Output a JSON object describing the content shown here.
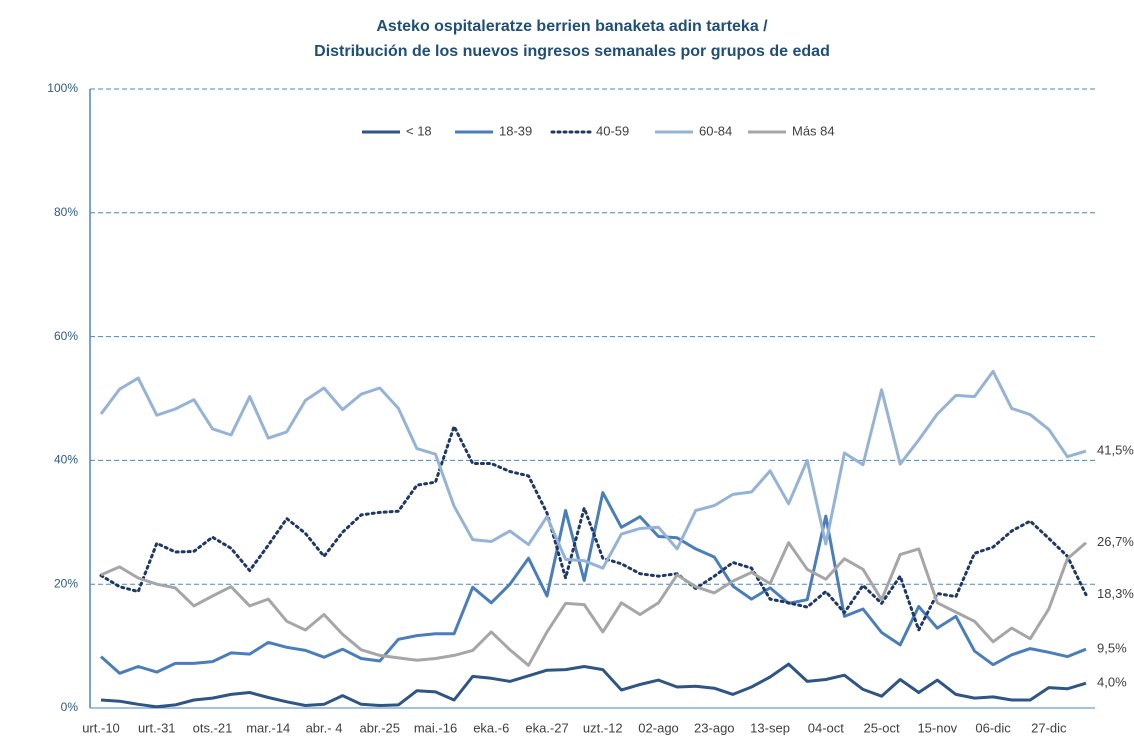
{
  "chart_data": {
    "type": "line",
    "title": [
      "Asteko ospitaleratze berrien banaketa adin tarteka /",
      "Distribución de los nuevos ingresos semanales por grupos de edad"
    ],
    "categories": [
      "urt.-10",
      null,
      null,
      "urt.-31",
      null,
      null,
      "ots.-21",
      null,
      null,
      "mar.-14",
      null,
      null,
      "abr.- 4",
      null,
      null,
      "abr.-25",
      null,
      null,
      "mai.-16",
      null,
      null,
      "eka.-6",
      null,
      null,
      "eka.-27",
      null,
      null,
      "uzt.-12",
      null,
      null,
      "02-ago",
      null,
      null,
      "23-ago",
      null,
      null,
      "13-sep",
      null,
      null,
      "04-oct",
      null,
      null,
      "25-oct",
      null,
      null,
      "15-nov",
      null,
      null,
      "06-dic",
      null,
      null,
      "27-dic",
      null,
      null
    ],
    "ylim": [
      0,
      100
    ],
    "yticks": [
      {
        "value": 0,
        "label": "0%"
      },
      {
        "value": 20,
        "label": "20%"
      },
      {
        "value": 40,
        "label": "40%"
      },
      {
        "value": 60,
        "label": "60%"
      },
      {
        "value": 80,
        "label": "80%"
      },
      {
        "value": 100,
        "label": "100%"
      }
    ],
    "grid": true,
    "legend": "top",
    "series": [
      {
        "name": "< 18",
        "color": "#2f5584",
        "style": "solid",
        "values": [
          1.3,
          1.1,
          0.6,
          0.2,
          0.5,
          1.3,
          1.6,
          2.2,
          2.5,
          1.7,
          1.0,
          0.4,
          0.6,
          2.0,
          0.6,
          0.4,
          0.5,
          2.8,
          2.6,
          1.3,
          5.1,
          4.8,
          4.3,
          5.2,
          6.1,
          6.2,
          6.7,
          6.2,
          2.9,
          3.8,
          4.5,
          3.4,
          3.5,
          3.2,
          2.2,
          3.4,
          5.0,
          7.1,
          4.3,
          4.6,
          5.3,
          3.0,
          1.9,
          4.6,
          2.5,
          4.5,
          2.2,
          1.6,
          1.8,
          1.3,
          1.3,
          3.3,
          3.1,
          4.0
        ],
        "value_labels": [
          null,
          null,
          null,
          null,
          null,
          null,
          null,
          null,
          null,
          null,
          null,
          null,
          null,
          null,
          null,
          null,
          null,
          null,
          null,
          null,
          null,
          null,
          null,
          null,
          null,
          null,
          null,
          null,
          null,
          null,
          null,
          null,
          null,
          null,
          null,
          null,
          null,
          null,
          null,
          null,
          null,
          null,
          null,
          null,
          null,
          null,
          null,
          null,
          null,
          null,
          null,
          null,
          null,
          "4,0%"
        ]
      },
      {
        "name": "18-39",
        "color": "#4a7ebb",
        "style": "solid",
        "values": [
          8.3,
          5.6,
          6.7,
          5.8,
          7.2,
          7.2,
          7.5,
          8.9,
          8.7,
          10.6,
          9.8,
          9.3,
          8.2,
          9.5,
          8.0,
          7.6,
          11.1,
          11.7,
          12.0,
          12.0,
          19.5,
          17.0,
          20.0,
          24.2,
          18.1,
          31.9,
          20.6,
          34.8,
          29.2,
          30.9,
          27.7,
          27.5,
          25.7,
          24.4,
          19.7,
          17.6,
          19.4,
          16.9,
          17.5,
          31.0,
          14.8,
          16.0,
          12.2,
          10.2,
          16.4,
          12.9,
          14.8,
          9.2,
          7.0,
          8.6,
          9.6,
          9.0,
          8.3,
          9.5
        ],
        "value_labels": [
          null,
          null,
          null,
          null,
          null,
          null,
          null,
          null,
          null,
          null,
          null,
          null,
          null,
          null,
          null,
          null,
          null,
          null,
          null,
          null,
          null,
          null,
          null,
          null,
          null,
          null,
          null,
          null,
          null,
          null,
          null,
          null,
          null,
          null,
          null,
          null,
          null,
          null,
          null,
          null,
          null,
          null,
          null,
          null,
          null,
          null,
          null,
          null,
          null,
          null,
          null,
          null,
          null,
          "9,5%"
        ]
      },
      {
        "name": "40-59",
        "color": "#1f3864",
        "style": "dotted",
        "values": [
          21.4,
          19.6,
          18.8,
          26.6,
          25.2,
          25.3,
          27.6,
          25.8,
          22.2,
          26.3,
          30.6,
          28.2,
          24.5,
          28.4,
          31.2,
          31.6,
          31.8,
          36.0,
          36.5,
          45.5,
          39.5,
          39.5,
          38.2,
          37.5,
          31.5,
          21.0,
          32.3,
          24.2,
          23.3,
          21.7,
          21.3,
          21.7,
          19.3,
          21.3,
          23.5,
          22.6,
          17.6,
          17.0,
          16.3,
          18.8,
          15.4,
          19.8,
          16.9,
          21.3,
          12.6,
          18.5,
          18.0,
          25.0,
          26.0,
          28.6,
          30.2,
          27.4,
          24.5,
          18.3
        ],
        "value_labels": [
          null,
          null,
          null,
          null,
          null,
          null,
          null,
          null,
          null,
          null,
          null,
          null,
          null,
          null,
          null,
          null,
          null,
          null,
          null,
          null,
          null,
          null,
          null,
          null,
          null,
          null,
          null,
          null,
          null,
          null,
          null,
          null,
          null,
          null,
          null,
          null,
          null,
          null,
          null,
          null,
          null,
          null,
          null,
          null,
          null,
          null,
          null,
          null,
          null,
          null,
          null,
          null,
          null,
          "18,3%"
        ]
      },
      {
        "name": "60-84",
        "color": "#95b3d7",
        "style": "solid",
        "values": [
          47.5,
          51.5,
          53.3,
          47.3,
          48.3,
          49.8,
          45.1,
          44.1,
          50.3,
          43.6,
          44.6,
          49.7,
          51.7,
          48.2,
          50.7,
          51.7,
          48.4,
          41.9,
          41.0,
          32.6,
          27.2,
          26.9,
          28.6,
          26.4,
          30.9,
          24.0,
          23.8,
          22.6,
          28.1,
          29.0,
          29.2,
          25.7,
          31.9,
          32.7,
          34.5,
          34.9,
          38.3,
          33.0,
          40.0,
          26.5,
          41.2,
          39.3,
          51.4,
          39.4,
          43.3,
          47.5,
          50.5,
          50.3,
          54.4,
          48.4,
          47.4,
          45.0,
          40.6,
          41.5
        ],
        "value_labels": [
          null,
          null,
          null,
          null,
          null,
          null,
          null,
          null,
          null,
          null,
          null,
          null,
          null,
          null,
          null,
          null,
          null,
          null,
          null,
          null,
          null,
          null,
          null,
          null,
          null,
          null,
          null,
          null,
          null,
          null,
          null,
          null,
          null,
          null,
          null,
          null,
          null,
          null,
          null,
          null,
          null,
          null,
          null,
          null,
          null,
          null,
          null,
          null,
          null,
          null,
          null,
          null,
          null,
          "41,5%"
        ]
      },
      {
        "name": "Más 84",
        "color": "#a6a6a6",
        "style": "solid",
        "values": [
          21.5,
          22.8,
          21.0,
          20.0,
          19.4,
          16.5,
          18.1,
          19.6,
          16.5,
          17.6,
          14.0,
          12.6,
          15.1,
          11.9,
          9.4,
          8.5,
          8.1,
          7.7,
          8.0,
          8.5,
          9.3,
          12.3,
          9.4,
          6.9,
          12.3,
          16.9,
          16.7,
          12.3,
          17.0,
          15.1,
          17.0,
          21.5,
          19.6,
          18.6,
          20.5,
          21.9,
          20.1,
          26.7,
          22.4,
          20.8,
          24.1,
          22.4,
          17.5,
          24.8,
          25.7,
          17.0,
          15.5,
          14.0,
          10.7,
          12.9,
          11.2,
          16.0,
          24.1,
          26.7
        ],
        "value_labels": [
          null,
          null,
          null,
          null,
          null,
          null,
          null,
          null,
          null,
          null,
          null,
          null,
          null,
          null,
          null,
          null,
          null,
          null,
          null,
          null,
          null,
          null,
          null,
          null,
          null,
          null,
          null,
          null,
          null,
          null,
          null,
          null,
          null,
          null,
          null,
          null,
          null,
          null,
          null,
          null,
          null,
          null,
          null,
          null,
          null,
          null,
          null,
          null,
          null,
          null,
          null,
          null,
          null,
          "26,7%"
        ]
      }
    ]
  }
}
